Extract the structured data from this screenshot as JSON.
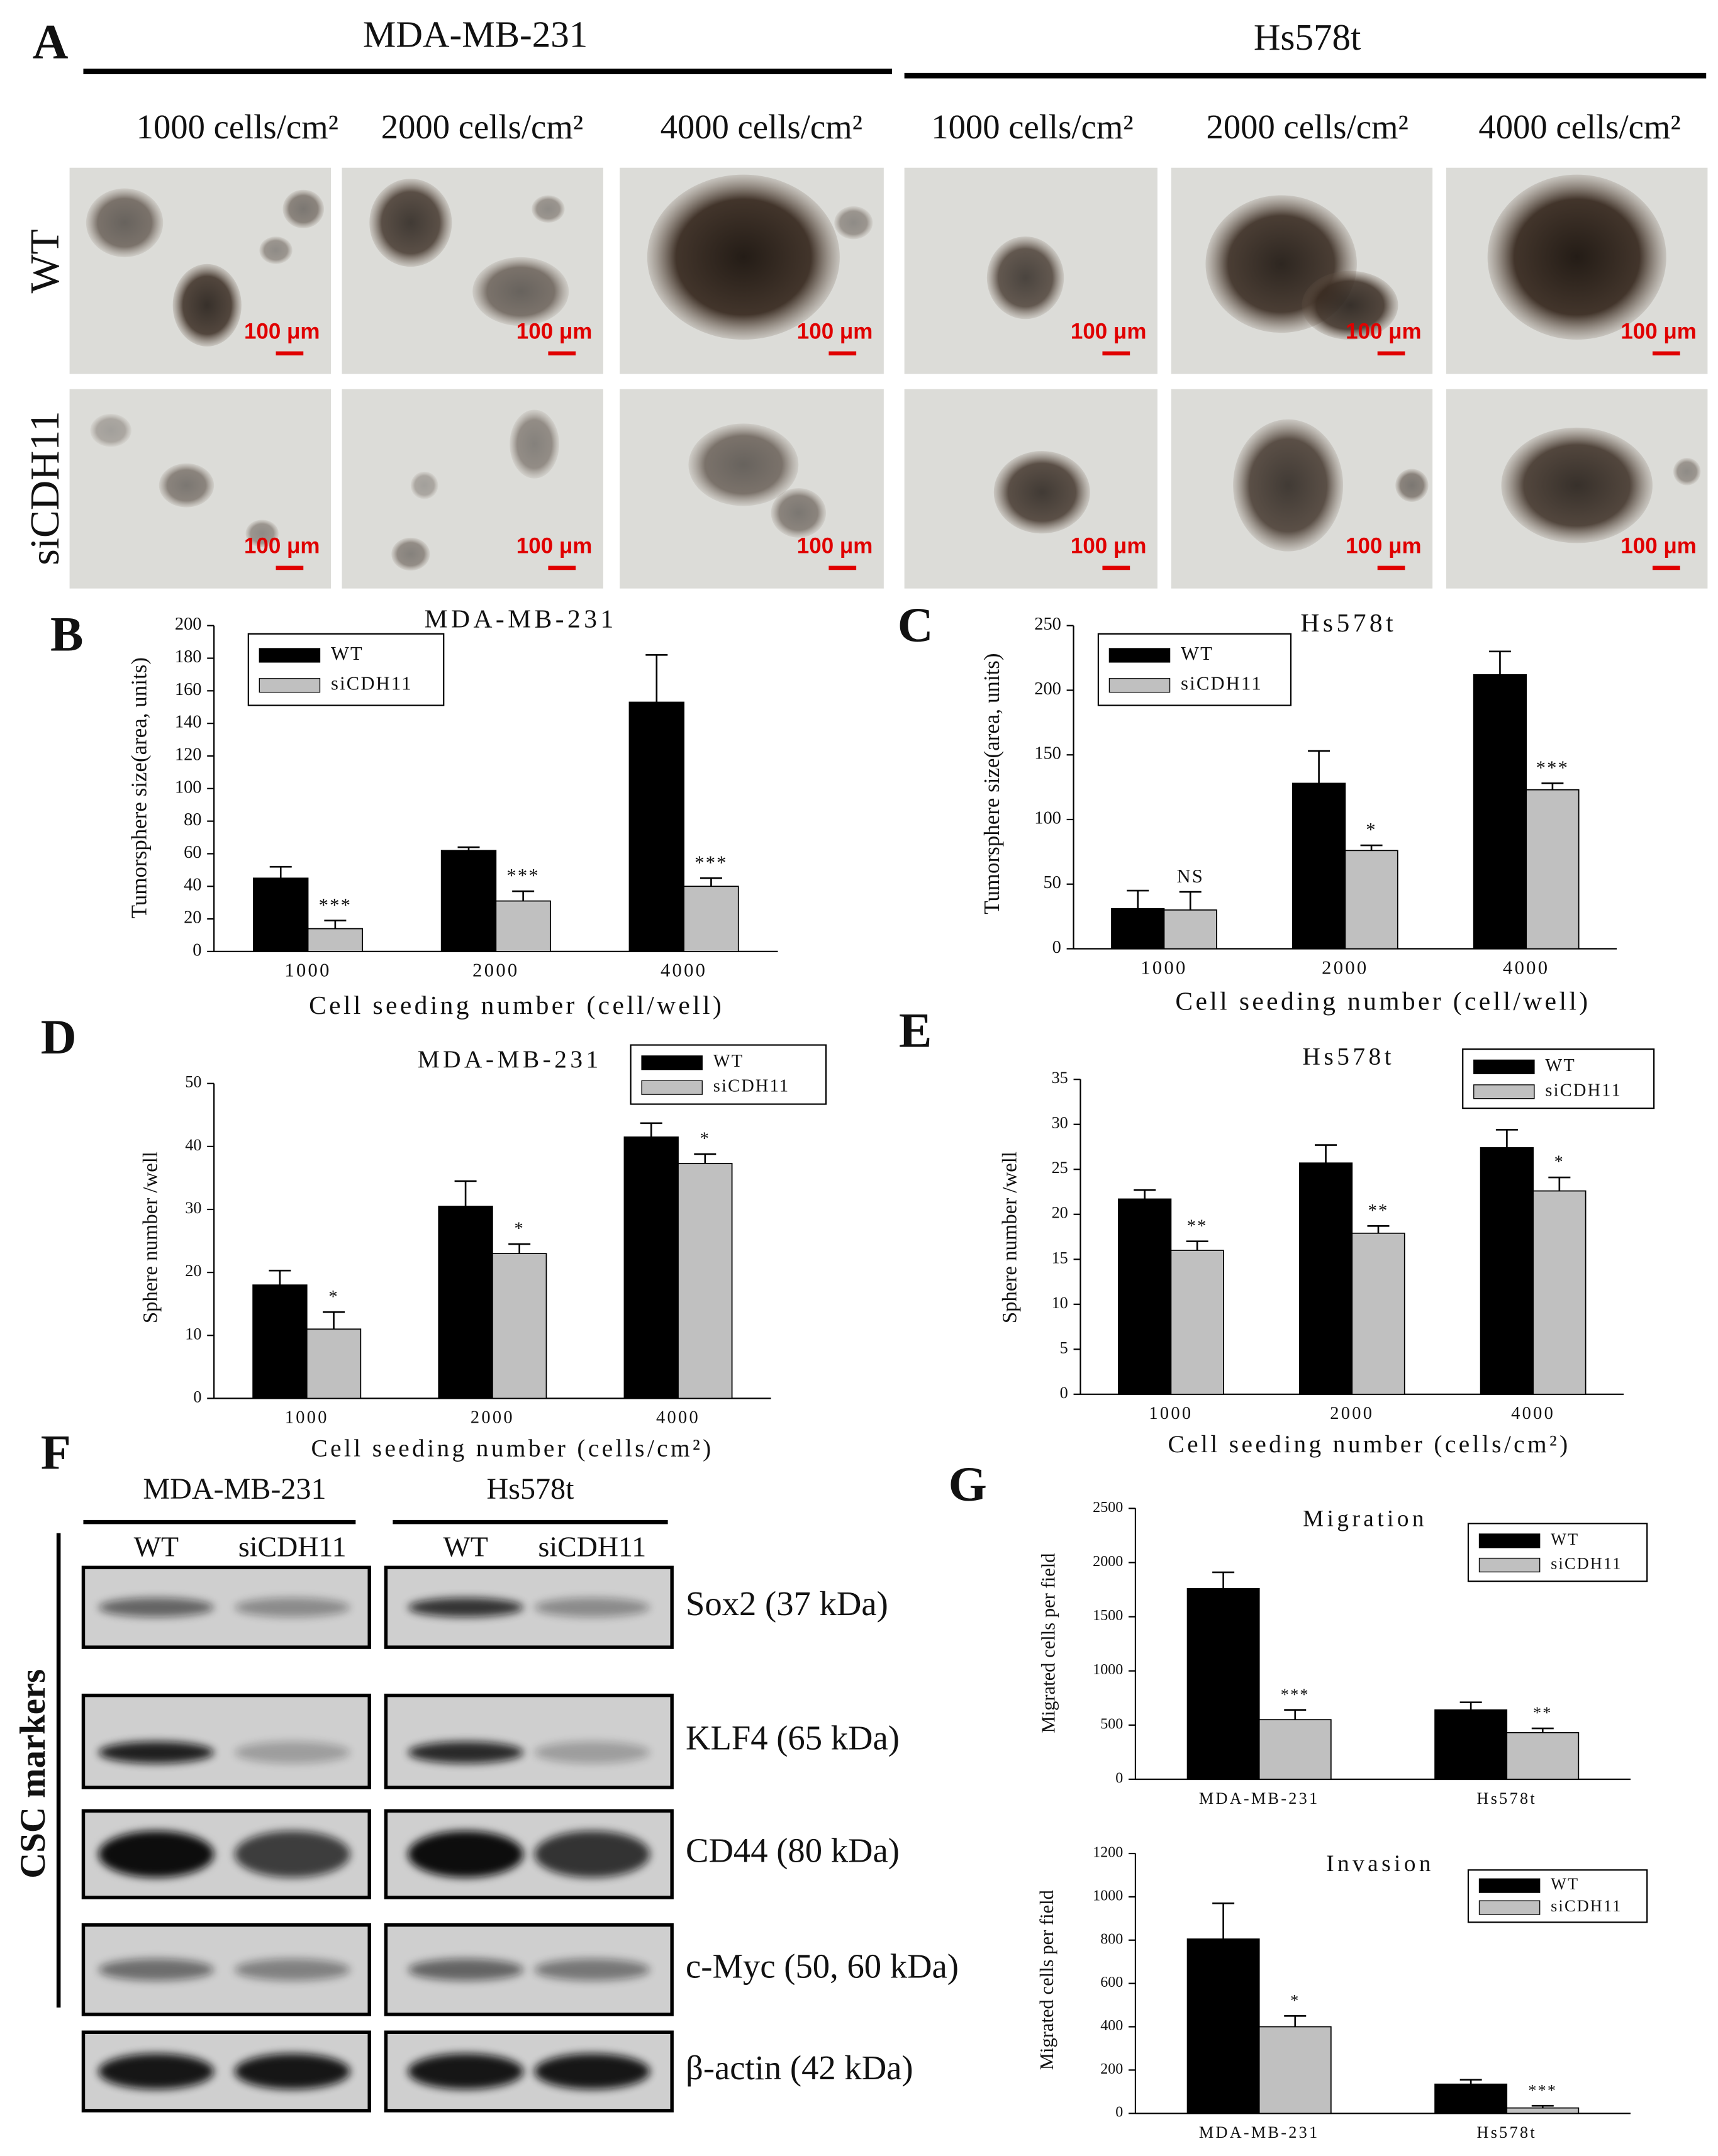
{
  "panel_a": {
    "label": "A",
    "groups": [
      {
        "name": "MDA-MB-231",
        "columns": [
          "1000 cells/cm²",
          "2000 cells/cm²",
          "4000 cells/cm²"
        ]
      },
      {
        "name": "Hs578t",
        "columns": [
          "1000 cells/cm²",
          "2000 cells/cm²",
          "4000 cells/cm²"
        ]
      }
    ],
    "rows": [
      "WT",
      "siCDH11"
    ],
    "scale_bar": "100 μm"
  },
  "chart_data": [
    {
      "type": "bar",
      "panel": "B",
      "title": "MDA-MB-231",
      "categories": [
        "1000",
        "2000",
        "4000"
      ],
      "series": [
        {
          "name": "WT",
          "color": "#000000",
          "values": [
            45,
            62,
            153
          ],
          "errors": [
            7,
            2,
            29
          ]
        },
        {
          "name": "siCDH11",
          "color": "#c0c0c0",
          "values": [
            14,
            31,
            40
          ],
          "errors": [
            5,
            6,
            5
          ]
        }
      ],
      "annotations": [
        "***",
        "***",
        "***"
      ],
      "y_label": "Tumorsphere size(area, units)",
      "x_label": "Cell seeding number (cell/well)",
      "ylim": [
        0,
        200
      ],
      "yticks": [
        0,
        20,
        40,
        60,
        80,
        100,
        120,
        140,
        160,
        180,
        200
      ],
      "legend": "upper left"
    },
    {
      "type": "bar",
      "panel": "C",
      "title": "Hs578t",
      "categories": [
        "1000",
        "2000",
        "4000"
      ],
      "series": [
        {
          "name": "WT",
          "color": "#000000",
          "values": [
            31,
            128,
            212
          ],
          "errors": [
            14,
            25,
            18
          ]
        },
        {
          "name": "siCDH11",
          "color": "#c0c0c0",
          "values": [
            30,
            76,
            123
          ],
          "errors": [
            14,
            4,
            5
          ]
        }
      ],
      "annotations": [
        "NS",
        "*",
        "***"
      ],
      "y_label": "Tumorsphere size(area, units)",
      "x_label": "Cell seeding number (cell/well)",
      "ylim": [
        0,
        250
      ],
      "yticks": [
        0,
        50,
        100,
        150,
        200,
        250
      ],
      "legend": "upper left"
    },
    {
      "type": "bar",
      "panel": "D",
      "title": "MDA-MB-231",
      "categories": [
        "1000",
        "2000",
        "4000"
      ],
      "series": [
        {
          "name": "WT",
          "color": "#000000",
          "values": [
            18,
            30.5,
            41.5
          ],
          "errors": [
            2.3,
            4,
            2.2
          ]
        },
        {
          "name": "siCDH11",
          "color": "#c0c0c0",
          "values": [
            11,
            23,
            37.3
          ],
          "errors": [
            2.7,
            1.5,
            1.5
          ]
        }
      ],
      "annotations": [
        "*",
        "*",
        "*"
      ],
      "y_label": "Sphere number /well",
      "x_label": "Cell seeding number (cells/cm²)",
      "ylim": [
        0,
        50
      ],
      "yticks": [
        0,
        10,
        20,
        30,
        40,
        50
      ],
      "legend": "upper right"
    },
    {
      "type": "bar",
      "panel": "E",
      "title": "Hs578t",
      "categories": [
        "1000",
        "2000",
        "4000"
      ],
      "series": [
        {
          "name": "WT",
          "color": "#000000",
          "values": [
            21.7,
            25.7,
            27.4
          ],
          "errors": [
            1,
            2,
            2
          ]
        },
        {
          "name": "siCDH11",
          "color": "#c0c0c0",
          "values": [
            16,
            17.9,
            22.6
          ],
          "errors": [
            1,
            0.8,
            1.5
          ]
        }
      ],
      "annotations": [
        "**",
        "**",
        "*"
      ],
      "y_label": "Sphere number /well",
      "x_label": "Cell seeding number (cells/cm²)",
      "ylim": [
        0,
        35
      ],
      "yticks": [
        0,
        5,
        10,
        15,
        20,
        25,
        30,
        35
      ],
      "legend": "upper right"
    },
    {
      "type": "bar",
      "panel": "G",
      "title": "Migration",
      "categories": [
        "MDA-MB-231",
        "Hs578t"
      ],
      "series": [
        {
          "name": "WT",
          "color": "#000000",
          "values": [
            1760,
            640
          ],
          "errors": [
            150,
            70
          ]
        },
        {
          "name": "siCDH11",
          "color": "#c0c0c0",
          "values": [
            550,
            430
          ],
          "errors": [
            90,
            40
          ]
        }
      ],
      "annotations": [
        "***",
        "**"
      ],
      "y_label": "Migrated cells per field",
      "ylim": [
        0,
        2500
      ],
      "yticks": [
        0,
        500,
        1000,
        1500,
        2000,
        2500
      ],
      "legend": "upper right"
    },
    {
      "type": "bar",
      "title": "Invasion",
      "categories": [
        "MDA-MB-231",
        "Hs578t"
      ],
      "series": [
        {
          "name": "WT",
          "color": "#000000",
          "values": [
            805,
            135
          ],
          "errors": [
            165,
            20
          ]
        },
        {
          "name": "siCDH11",
          "color": "#c0c0c0",
          "values": [
            400,
            25
          ],
          "errors": [
            50,
            10
          ]
        }
      ],
      "annotations": [
        "*",
        "***"
      ],
      "y_label": "Migrated cells per field",
      "ylim": [
        0,
        1200
      ],
      "yticks": [
        0,
        200,
        400,
        600,
        800,
        1000,
        1200
      ],
      "legend": "upper right"
    }
  ],
  "panel_f": {
    "label": "F",
    "groups": [
      {
        "name": "MDA-MB-231",
        "lanes": [
          "WT",
          "siCDH11"
        ]
      },
      {
        "name": "Hs578t",
        "lanes": [
          "WT",
          "siCDH11"
        ]
      }
    ],
    "side_label": "CSC markers",
    "blots": [
      "Sox2 (37 kDa)",
      "KLF4 (65 kDa)",
      "CD44 (80 kDa)",
      "c-Myc (50, 60  kDa)",
      "β-actin (42 kDa)"
    ]
  }
}
